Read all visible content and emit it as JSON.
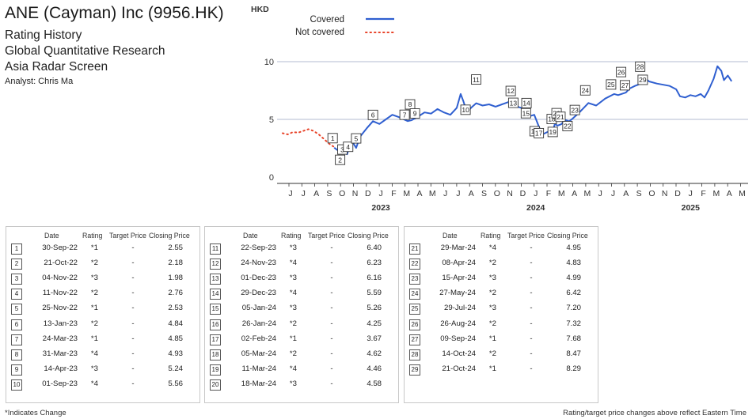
{
  "header": {
    "company": "ANE (Cayman) Inc (9956.HK)",
    "line1": "Rating History",
    "line2": "Global Quantitative Research",
    "line3": "Asia Radar Screen",
    "analyst": "Analyst: Chris Ma"
  },
  "table_headers": {
    "date": "Date",
    "rating": "Rating",
    "target": "Target Price",
    "closing": "Closing Price"
  },
  "ratings": [
    {
      "n": "1",
      "date": "30-Sep-22",
      "rating": "*1",
      "target": "-",
      "close": "2.55"
    },
    {
      "n": "2",
      "date": "21-Oct-22",
      "rating": "*2",
      "target": "-",
      "close": "2.18"
    },
    {
      "n": "3",
      "date": "04-Nov-22",
      "rating": "*3",
      "target": "-",
      "close": "1.98"
    },
    {
      "n": "4",
      "date": "11-Nov-22",
      "rating": "*2",
      "target": "-",
      "close": "2.76"
    },
    {
      "n": "5",
      "date": "25-Nov-22",
      "rating": "*1",
      "target": "-",
      "close": "2.53"
    },
    {
      "n": "6",
      "date": "13-Jan-23",
      "rating": "*2",
      "target": "-",
      "close": "4.84"
    },
    {
      "n": "7",
      "date": "24-Mar-23",
      "rating": "*1",
      "target": "-",
      "close": "4.85"
    },
    {
      "n": "8",
      "date": "31-Mar-23",
      "rating": "*4",
      "target": "-",
      "close": "4.93"
    },
    {
      "n": "9",
      "date": "14-Apr-23",
      "rating": "*3",
      "target": "-",
      "close": "5.24"
    },
    {
      "n": "10",
      "date": "01-Sep-23",
      "rating": "*4",
      "target": "-",
      "close": "5.56"
    },
    {
      "n": "11",
      "date": "22-Sep-23",
      "rating": "*3",
      "target": "-",
      "close": "6.40"
    },
    {
      "n": "12",
      "date": "24-Nov-23",
      "rating": "*4",
      "target": "-",
      "close": "6.23"
    },
    {
      "n": "13",
      "date": "01-Dec-23",
      "rating": "*3",
      "target": "-",
      "close": "6.16"
    },
    {
      "n": "14",
      "date": "29-Dec-23",
      "rating": "*4",
      "target": "-",
      "close": "5.59"
    },
    {
      "n": "15",
      "date": "05-Jan-24",
      "rating": "*3",
      "target": "-",
      "close": "5.26"
    },
    {
      "n": "16",
      "date": "26-Jan-24",
      "rating": "*2",
      "target": "-",
      "close": "4.25"
    },
    {
      "n": "17",
      "date": "02-Feb-24",
      "rating": "*1",
      "target": "-",
      "close": "3.67"
    },
    {
      "n": "18",
      "date": "05-Mar-24",
      "rating": "*2",
      "target": "-",
      "close": "4.62"
    },
    {
      "n": "19",
      "date": "11-Mar-24",
      "rating": "*4",
      "target": "-",
      "close": "4.46"
    },
    {
      "n": "20",
      "date": "18-Mar-24",
      "rating": "*3",
      "target": "-",
      "close": "4.58"
    },
    {
      "n": "21",
      "date": "29-Mar-24",
      "rating": "*4",
      "target": "-",
      "close": "4.95"
    },
    {
      "n": "22",
      "date": "08-Apr-24",
      "rating": "*2",
      "target": "-",
      "close": "4.83"
    },
    {
      "n": "23",
      "date": "15-Apr-24",
      "rating": "*3",
      "target": "-",
      "close": "4.99"
    },
    {
      "n": "24",
      "date": "27-May-24",
      "rating": "*2",
      "target": "-",
      "close": "6.42"
    },
    {
      "n": "25",
      "date": "29-Jul-24",
      "rating": "*3",
      "target": "-",
      "close": "7.20"
    },
    {
      "n": "26",
      "date": "26-Aug-24",
      "rating": "*2",
      "target": "-",
      "close": "7.32"
    },
    {
      "n": "27",
      "date": "09-Sep-24",
      "rating": "*1",
      "target": "-",
      "close": "7.68"
    },
    {
      "n": "28",
      "date": "14-Oct-24",
      "rating": "*2",
      "target": "-",
      "close": "8.47"
    },
    {
      "n": "29",
      "date": "21-Oct-24",
      "rating": "*1",
      "target": "-",
      "close": "8.29"
    }
  ],
  "footer": {
    "left": "*Indicates Change",
    "right": "Rating/target price changes above reflect Eastern Time"
  },
  "chart_data": {
    "type": "line",
    "ylabel": "HKD",
    "yticks": [
      0,
      5,
      10
    ],
    "ylim": [
      0,
      11.2
    ],
    "x_months": [
      "J",
      "J",
      "A",
      "S",
      "O",
      "N",
      "D",
      "J",
      "F",
      "M",
      "A",
      "M",
      "J",
      "J",
      "A",
      "S",
      "O",
      "N",
      "D",
      "J",
      "F",
      "M",
      "A",
      "M",
      "J",
      "J",
      "A",
      "S",
      "O",
      "N",
      "D",
      "J",
      "F",
      "M",
      "A",
      "M"
    ],
    "x_years": [
      {
        "label": "2023",
        "month_index": 7
      },
      {
        "label": "2024",
        "month_index": 19
      },
      {
        "label": "2025",
        "month_index": 31
      }
    ],
    "legend": {
      "covered": "Covered",
      "not_covered": "Not covered",
      "position": "top-left"
    },
    "colors": {
      "covered": "#2f5fd0",
      "not_covered": "#e8442a",
      "grid": "#9aa4c0"
    },
    "series": [
      {
        "name": "Not covered",
        "style": "dotted",
        "points": [
          [
            0,
            3.8
          ],
          [
            0.4,
            3.7
          ],
          [
            0.8,
            3.9
          ],
          [
            1.2,
            3.85
          ],
          [
            1.6,
            4.0
          ],
          [
            2.0,
            4.15
          ],
          [
            2.4,
            4.0
          ],
          [
            2.8,
            3.7
          ],
          [
            3.2,
            3.3
          ],
          [
            3.6,
            2.9
          ],
          [
            4.0,
            2.6
          ],
          [
            4.1,
            2.5
          ]
        ]
      },
      {
        "name": "Covered",
        "style": "solid",
        "points": [
          [
            4.0,
            2.55
          ],
          [
            4.3,
            2.3
          ],
          [
            4.7,
            2.18
          ],
          [
            5.0,
            1.98
          ],
          [
            5.2,
            2.76
          ],
          [
            5.5,
            2.9
          ],
          [
            5.7,
            2.53
          ],
          [
            6.0,
            3.5
          ],
          [
            6.5,
            4.2
          ],
          [
            7.0,
            4.84
          ],
          [
            7.5,
            4.6
          ],
          [
            8.0,
            5.0
          ],
          [
            8.5,
            5.4
          ],
          [
            9.0,
            5.2
          ],
          [
            9.7,
            4.85
          ],
          [
            10.0,
            4.93
          ],
          [
            10.5,
            5.24
          ],
          [
            11.0,
            5.6
          ],
          [
            11.5,
            5.5
          ],
          [
            12.0,
            5.9
          ],
          [
            12.5,
            5.6
          ],
          [
            13.0,
            5.4
          ],
          [
            13.5,
            6.0
          ],
          [
            13.8,
            7.2
          ],
          [
            14.0,
            6.6
          ],
          [
            14.3,
            5.56
          ],
          [
            14.6,
            6.0
          ],
          [
            15.0,
            6.4
          ],
          [
            15.5,
            6.2
          ],
          [
            16.0,
            6.3
          ],
          [
            16.5,
            6.1
          ],
          [
            17.0,
            6.3
          ],
          [
            17.5,
            6.5
          ],
          [
            17.8,
            6.23
          ],
          [
            18.0,
            6.16
          ],
          [
            18.5,
            6.0
          ],
          [
            18.9,
            5.59
          ],
          [
            19.1,
            5.26
          ],
          [
            19.5,
            5.4
          ],
          [
            19.9,
            4.25
          ],
          [
            20.1,
            3.67
          ],
          [
            20.5,
            3.9
          ],
          [
            21.0,
            4.2
          ],
          [
            21.1,
            4.62
          ],
          [
            21.3,
            4.46
          ],
          [
            21.6,
            4.58
          ],
          [
            21.9,
            4.95
          ],
          [
            22.2,
            4.83
          ],
          [
            22.4,
            4.99
          ],
          [
            23.0,
            5.6
          ],
          [
            23.7,
            6.42
          ],
          [
            24.3,
            6.2
          ],
          [
            25.0,
            6.8
          ],
          [
            25.7,
            7.2
          ],
          [
            26.0,
            7.1
          ],
          [
            26.6,
            7.32
          ],
          [
            26.9,
            7.68
          ],
          [
            27.3,
            7.9
          ],
          [
            28.0,
            8.2
          ],
          [
            28.2,
            8.47
          ],
          [
            28.4,
            8.29
          ],
          [
            29.0,
            8.1
          ],
          [
            29.5,
            8.0
          ],
          [
            30.0,
            7.9
          ],
          [
            30.5,
            7.6
          ],
          [
            30.8,
            7.0
          ],
          [
            31.2,
            6.9
          ],
          [
            31.6,
            7.1
          ],
          [
            32.0,
            7.0
          ],
          [
            32.4,
            7.2
          ],
          [
            32.7,
            6.9
          ],
          [
            33.0,
            7.5
          ],
          [
            33.4,
            8.5
          ],
          [
            33.7,
            9.6
          ],
          [
            34.0,
            9.2
          ],
          [
            34.2,
            8.4
          ],
          [
            34.5,
            8.8
          ],
          [
            34.8,
            8.3
          ]
        ]
      }
    ],
    "markers": [
      {
        "n": "1",
        "x": 4.0,
        "y": 2.55
      },
      {
        "n": "2",
        "x": 4.7,
        "y": 2.18
      },
      {
        "n": "3",
        "x": 5.0,
        "y": 1.98
      },
      {
        "n": "4",
        "x": 5.2,
        "y": 2.76
      },
      {
        "n": "5",
        "x": 5.7,
        "y": 2.53
      },
      {
        "n": "6",
        "x": 7.0,
        "y": 4.84
      },
      {
        "n": "7",
        "x": 9.7,
        "y": 4.85
      },
      {
        "n": "8",
        "x": 10.0,
        "y": 4.93
      },
      {
        "n": "9",
        "x": 10.5,
        "y": 5.24
      },
      {
        "n": "10",
        "x": 14.3,
        "y": 5.56
      },
      {
        "n": "11",
        "x": 15.0,
        "y": 6.4
      },
      {
        "n": "12",
        "x": 17.8,
        "y": 6.23
      },
      {
        "n": "13",
        "x": 18.0,
        "y": 6.16
      },
      {
        "n": "14",
        "x": 18.9,
        "y": 5.59
      },
      {
        "n": "15",
        "x": 19.1,
        "y": 5.26
      },
      {
        "n": "16",
        "x": 19.9,
        "y": 4.25
      },
      {
        "n": "17",
        "x": 20.1,
        "y": 3.67
      },
      {
        "n": "18",
        "x": 21.1,
        "y": 4.62
      },
      {
        "n": "19",
        "x": 21.3,
        "y": 4.46
      },
      {
        "n": "20",
        "x": 21.6,
        "y": 4.58
      },
      {
        "n": "21",
        "x": 21.9,
        "y": 4.95
      },
      {
        "n": "22",
        "x": 22.2,
        "y": 4.83
      },
      {
        "n": "23",
        "x": 22.4,
        "y": 4.99
      },
      {
        "n": "24",
        "x": 23.7,
        "y": 6.42
      },
      {
        "n": "25",
        "x": 25.7,
        "y": 7.2
      },
      {
        "n": "26",
        "x": 26.6,
        "y": 7.32
      },
      {
        "n": "27",
        "x": 26.9,
        "y": 7.68
      },
      {
        "n": "28",
        "x": 28.2,
        "y": 8.47
      },
      {
        "n": "29",
        "x": 28.4,
        "y": 8.29
      }
    ]
  }
}
